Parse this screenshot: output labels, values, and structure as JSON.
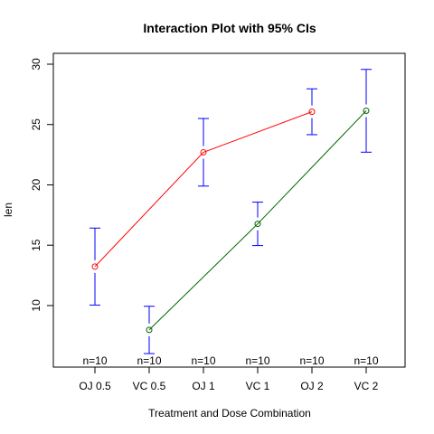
{
  "chart_data": {
    "type": "line",
    "title": "Interaction Plot with 95% CIs",
    "xlabel": "Treatment and Dose Combination",
    "ylabel": "len",
    "categories": [
      "OJ 0.5",
      "VC 0.5",
      "OJ 1",
      "VC 1",
      "OJ 2",
      "VC 2"
    ],
    "ylim": [
      4.9,
      30.9
    ],
    "yticks": [
      10,
      15,
      20,
      25,
      30
    ],
    "grid": false,
    "series": [
      {
        "x": [
          "OJ 0.5",
          "OJ 1",
          "OJ 2"
        ],
        "values": [
          13.23,
          22.7,
          26.06
        ],
        "color": "#ff0000"
      },
      {
        "x": [
          "VC 0.5",
          "VC 1",
          "VC 2"
        ],
        "values": [
          7.98,
          16.77,
          26.14
        ],
        "color": "#006400"
      }
    ],
    "error_bars": {
      "color": "#0000ff",
      "categories": [
        "OJ 0.5",
        "VC 0.5",
        "OJ 1",
        "VC 1",
        "OJ 2",
        "VC 2"
      ],
      "lower": [
        10.04,
        6.02,
        19.9,
        14.97,
        24.16,
        22.71
      ],
      "upper": [
        16.42,
        9.94,
        25.5,
        18.57,
        27.96,
        29.57
      ]
    },
    "n_labels": [
      "n=10",
      "n=10",
      "n=10",
      "n=10",
      "n=10",
      "n=10"
    ]
  }
}
